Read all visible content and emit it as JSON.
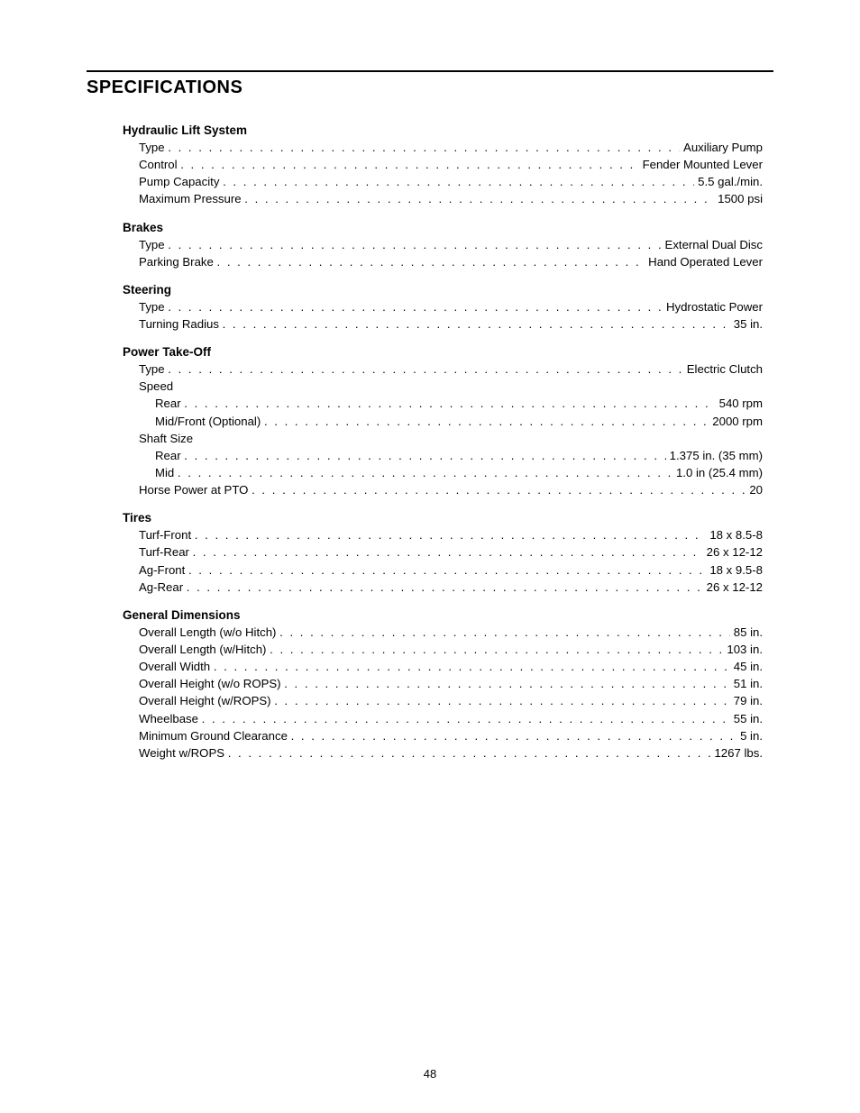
{
  "title": "SPECIFICATIONS",
  "page_number": "48",
  "colors": {
    "text": "#000000",
    "background": "#ffffff",
    "rule": "#000000"
  },
  "typography": {
    "title_fontsize_pt": 15,
    "section_fontsize_pt": 10.5,
    "body_fontsize_pt": 10,
    "font_family": "Arial"
  },
  "sections": [
    {
      "heading": "Hydraulic Lift System",
      "items": [
        {
          "label": "Type",
          "value": "Auxiliary Pump",
          "indent": 0
        },
        {
          "label": "Control",
          "value": "Fender Mounted Lever",
          "indent": 0
        },
        {
          "label": "Pump Capacity",
          "value": "5.5 gal./min.",
          "indent": 0
        },
        {
          "label": "Maximum Pressure",
          "value": "1500 psi",
          "indent": 0
        }
      ]
    },
    {
      "heading": "Brakes",
      "items": [
        {
          "label": "Type",
          "value": "External Dual Disc",
          "indent": 0
        },
        {
          "label": "Parking Brake",
          "value": "Hand Operated Lever",
          "indent": 0
        }
      ]
    },
    {
      "heading": "Steering",
      "items": [
        {
          "label": "Type",
          "value": "Hydrostatic Power",
          "indent": 0
        },
        {
          "label": "Turning Radius",
          "value": "35 in.",
          "indent": 0
        }
      ]
    },
    {
      "heading": "Power Take-Off",
      "items": [
        {
          "label": "Type",
          "value": "Electric Clutch",
          "indent": 0
        },
        {
          "label": "Speed",
          "group": true,
          "indent": 0
        },
        {
          "label": "Rear",
          "value": "540 rpm",
          "indent": 1
        },
        {
          "label": "Mid/Front (Optional)",
          "value": "2000 rpm",
          "indent": 1
        },
        {
          "label": "Shaft Size",
          "group": true,
          "indent": 0
        },
        {
          "label": "Rear",
          "value": "1.375 in. (35 mm)",
          "indent": 1
        },
        {
          "label": "Mid",
          "value": "1.0 in (25.4 mm)",
          "indent": 1
        },
        {
          "label": "Horse Power at PTO",
          "value": "20",
          "indent": 0
        }
      ]
    },
    {
      "heading": "Tires",
      "items": [
        {
          "label": "Turf-Front",
          "value": "18 x 8.5-8",
          "indent": 0
        },
        {
          "label": "Turf-Rear",
          "value": "26 x 12-12",
          "indent": 0
        },
        {
          "label": "Ag-Front",
          "value": "18 x 9.5-8",
          "indent": 0
        },
        {
          "label": "Ag-Rear",
          "value": "26 x 12-12",
          "indent": 0
        }
      ]
    },
    {
      "heading": "General Dimensions",
      "items": [
        {
          "label": "Overall Length (w/o Hitch)",
          "value": "85 in.",
          "indent": 0
        },
        {
          "label": "Overall Length (w/Hitch)",
          "value": "103 in.",
          "indent": 0
        },
        {
          "label": "Overall Width",
          "value": "45 in.",
          "indent": 0
        },
        {
          "label": "Overall Height (w/o ROPS)",
          "value": "51 in.",
          "indent": 0
        },
        {
          "label": "Overall Height (w/ROPS)",
          "value": "79 in.",
          "indent": 0
        },
        {
          "label": "Wheelbase",
          "value": "55 in.",
          "indent": 0
        },
        {
          "label": "Minimum Ground Clearance",
          "value": "5 in.",
          "indent": 0
        },
        {
          "label": "Weight w/ROPS",
          "value": "1267 lbs.",
          "indent": 0
        }
      ]
    }
  ]
}
